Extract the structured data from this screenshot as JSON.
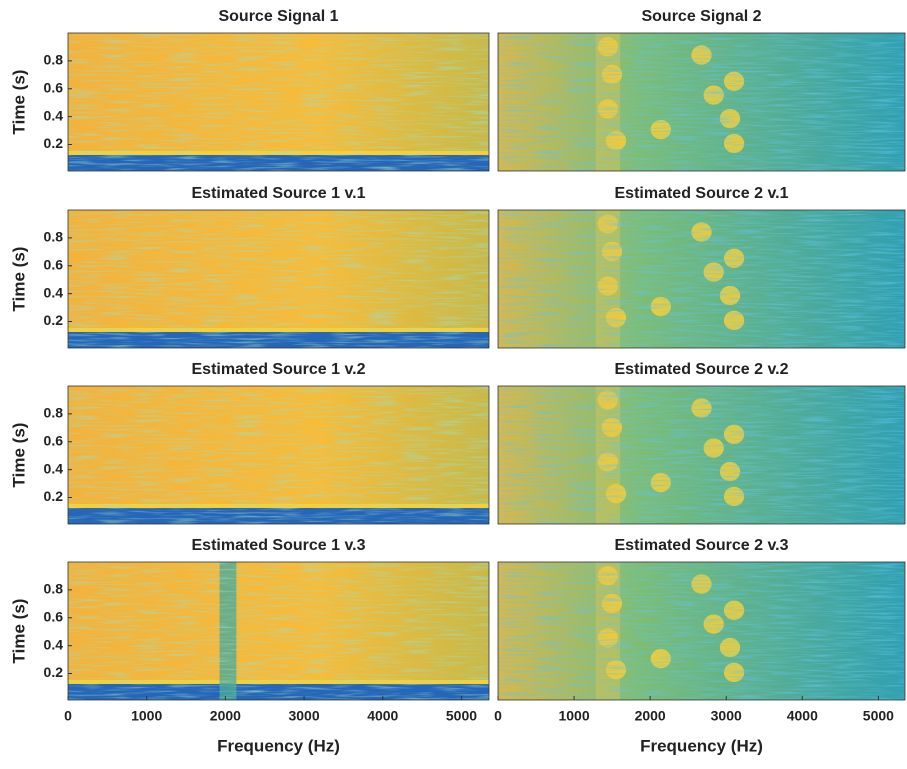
{
  "chart_data": [
    {
      "type": "spectrogram",
      "title": "Source Signal 1",
      "ylabel": "Time (s)",
      "xlim": [
        0,
        5350
      ],
      "ylim": [
        0.01,
        1.0
      ],
      "yticks": [
        0.2,
        0.4,
        0.6,
        0.8
      ]
    },
    {
      "type": "spectrogram",
      "title": "Source Signal 2",
      "xlim": [
        0,
        5350
      ],
      "ylim": [
        0.01,
        1.0
      ]
    },
    {
      "type": "spectrogram",
      "title": "Estimated Source 1 v.1",
      "ylabel": "Time (s)",
      "xlim": [
        0,
        5350
      ],
      "ylim": [
        0.01,
        1.0
      ],
      "yticks": [
        0.2,
        0.4,
        0.6,
        0.8
      ]
    },
    {
      "type": "spectrogram",
      "title": "Estimated Source 2 v.1",
      "xlim": [
        0,
        5350
      ],
      "ylim": [
        0.01,
        1.0
      ]
    },
    {
      "type": "spectrogram",
      "title": "Estimated Source 1 v.2",
      "ylabel": "Time (s)",
      "xlim": [
        0,
        5350
      ],
      "ylim": [
        0.01,
        1.0
      ],
      "yticks": [
        0.2,
        0.4,
        0.6,
        0.8
      ]
    },
    {
      "type": "spectrogram",
      "title": "Estimated Source 2 v.2",
      "xlim": [
        0,
        5350
      ],
      "ylim": [
        0.01,
        1.0
      ]
    },
    {
      "type": "spectrogram",
      "title": "Estimated Source 1 v.3",
      "ylabel": "Time (s)",
      "xlabel": "Frequency (Hz)",
      "xlim": [
        0,
        5350
      ],
      "ylim": [
        0.01,
        1.0
      ],
      "yticks": [
        0.2,
        0.4,
        0.6,
        0.8
      ],
      "xticks": [
        0,
        1000,
        2000,
        3000,
        4000,
        5000
      ]
    },
    {
      "type": "spectrogram",
      "title": "Estimated Source 2 v.3",
      "xlabel": "Frequency (Hz)",
      "xlim": [
        0,
        5350
      ],
      "ylim": [
        0.01,
        1.0
      ],
      "xticks": [
        0,
        1000,
        2000,
        3000,
        4000,
        5000
      ]
    }
  ]
}
